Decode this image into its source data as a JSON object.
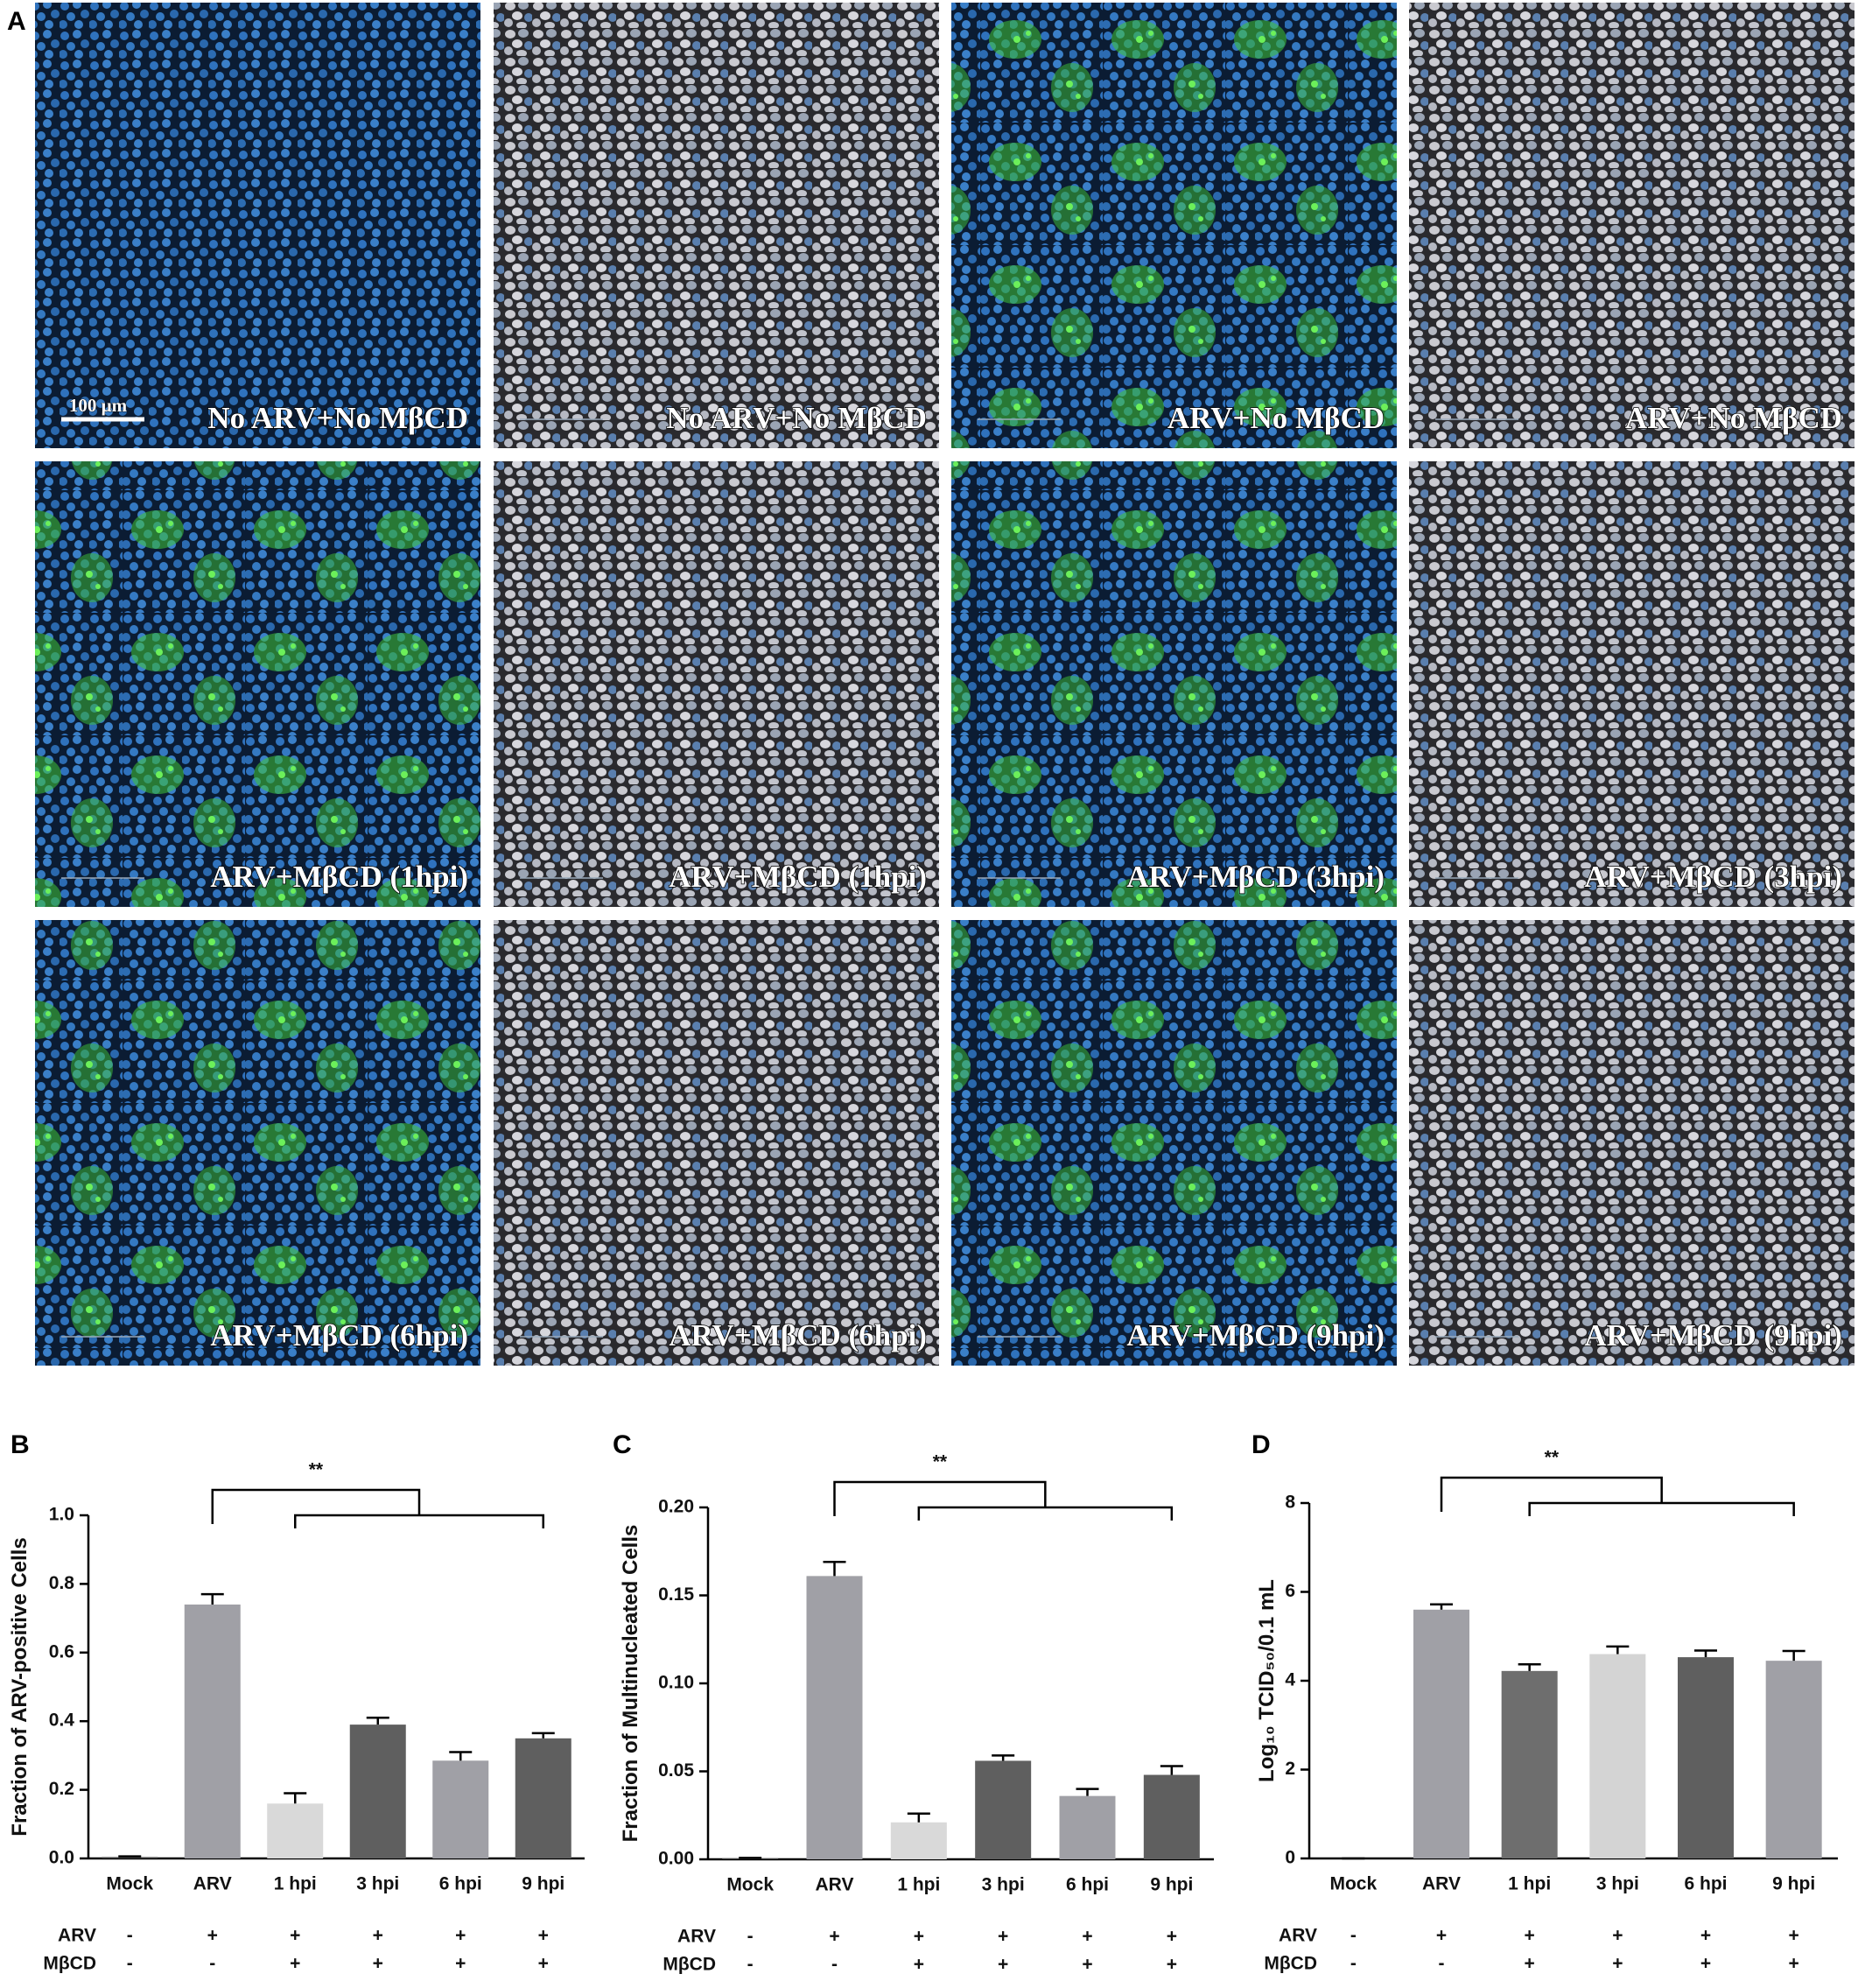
{
  "panel_a": {
    "label": "A",
    "scale_bar": "100 µm",
    "images": [
      "No ARV+No MβCD",
      "No ARV+No MβCD",
      "ARV+No MβCD",
      "ARV+No MβCD",
      "ARV+MβCD (1hpi)",
      "ARV+MβCD (1hpi)",
      "ARV+MβCD (3hpi)",
      "ARV+MβCD (3hpi)",
      "ARV+MβCD (6hpi)",
      "ARV+MβCD (6hpi)",
      "ARV+MβCD (9hpi)",
      "ARV+MβCD (9hpi)"
    ]
  },
  "chart_data": [
    {
      "type": "bar",
      "panel": "B",
      "ylabel": "Fraction of ARV-positive Cells",
      "categories": [
        "Mock",
        "ARV",
        "1 hpi",
        "3 hpi",
        "6 hpi",
        "9 hpi"
      ],
      "values": [
        0.004,
        0.74,
        0.16,
        0.39,
        0.285,
        0.35
      ],
      "errors": [
        0.002,
        0.03,
        0.03,
        0.02,
        0.025,
        0.015
      ],
      "colors": [
        "#444444",
        "#a0a0a6",
        "#d9d9d9",
        "#5f5f5f",
        "#a0a0a6",
        "#5f5f5f"
      ],
      "ylim": [
        0,
        1.0
      ],
      "yticks": [
        {
          "value": 0,
          "label": "0.0"
        },
        0.2,
        0.4,
        0.6,
        0.8,
        {
          "value": 1.0,
          "label": "1.0"
        }
      ],
      "annotation": "**",
      "treatments": [
        {
          "name": "ARV",
          "values": [
            "-",
            "+",
            "+",
            "+",
            "+",
            "+"
          ]
        },
        {
          "name": "MβCD",
          "values": [
            "-",
            "-",
            "+",
            "+",
            "+",
            "+"
          ]
        }
      ]
    },
    {
      "type": "bar",
      "panel": "C",
      "ylabel": "Fraction of Multinucleated Cells",
      "categories": [
        "Mock",
        "ARV",
        "1 hpi",
        "3 hpi",
        "6 hpi",
        "9 hpi"
      ],
      "values": [
        0.0005,
        0.161,
        0.021,
        0.056,
        0.036,
        0.048
      ],
      "errors": [
        0.0003,
        0.008,
        0.005,
        0.003,
        0.004,
        0.005
      ],
      "colors": [
        "#444444",
        "#a0a0a6",
        "#d9d9d9",
        "#5f5f5f",
        "#a0a0a6",
        "#5f5f5f"
      ],
      "ylim": [
        0,
        0.2
      ],
      "yticks": [
        {
          "value": 0,
          "label": "0.00"
        },
        0.05,
        {
          "value": 0.1,
          "label": "0.10"
        },
        0.15,
        {
          "value": 0.2,
          "label": "0.20"
        }
      ],
      "annotation": "**",
      "treatments": [
        {
          "name": "ARV",
          "values": [
            "-",
            "+",
            "+",
            "+",
            "+",
            "+"
          ]
        },
        {
          "name": "MβCD",
          "values": [
            "-",
            "-",
            "+",
            "+",
            "+",
            "+"
          ]
        }
      ]
    },
    {
      "type": "bar",
      "panel": "D",
      "ylabel": "Log₁₀ TCID₅₀/0.1 mL",
      "categories": [
        "Mock",
        "ARV",
        "1 hpi",
        "3 hpi",
        "6 hpi",
        "9 hpi"
      ],
      "values": [
        0,
        5.6,
        4.22,
        4.6,
        4.53,
        4.45
      ],
      "errors": [
        0,
        0.12,
        0.15,
        0.17,
        0.15,
        0.22
      ],
      "colors": [
        "#444444",
        "#a0a0a6",
        "#6e6e6e",
        "#d4d4d4",
        "#5f5f5f",
        "#a0a0a6"
      ],
      "ylim": [
        0,
        8
      ],
      "yticks": [
        0,
        2,
        4,
        6,
        8
      ],
      "annotation": "**",
      "treatments": [
        {
          "name": "ARV",
          "values": [
            "-",
            "+",
            "+",
            "+",
            "+",
            "+"
          ]
        },
        {
          "name": "MβCD",
          "values": [
            "-",
            "-",
            "+",
            "+",
            "+",
            "+"
          ]
        }
      ]
    }
  ]
}
